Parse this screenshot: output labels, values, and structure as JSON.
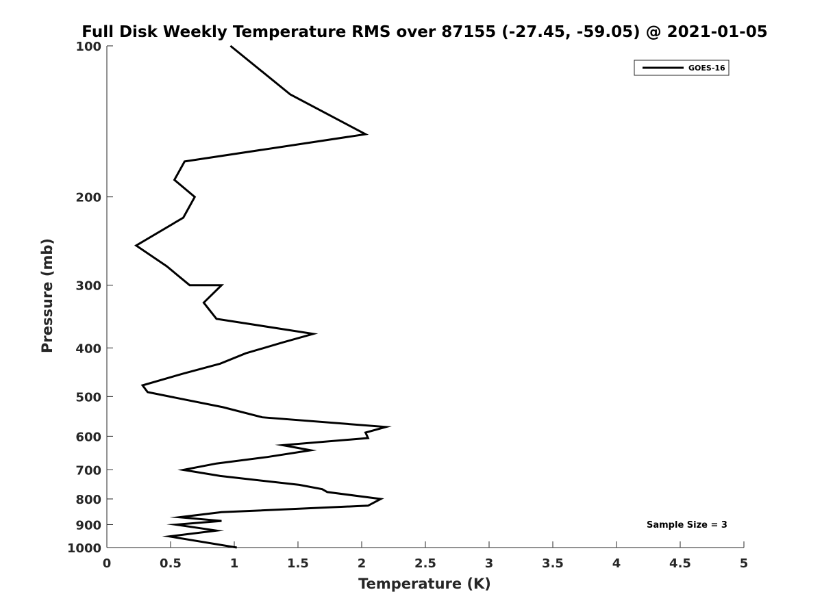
{
  "chart_data": {
    "type": "line",
    "title": "Full Disk Weekly Temperature RMS over 87155 (-27.45, -59.05) @ 2021-01-05",
    "xlabel": "Temperature (K)",
    "ylabel": "Pressure (mb)",
    "xlim": [
      0,
      5
    ],
    "ylim": [
      100,
      1000
    ],
    "y_scale": "log",
    "y_direction": "reversed",
    "x_ticks": [
      0,
      0.5,
      1,
      1.5,
      2,
      2.5,
      3,
      3.5,
      4,
      4.5,
      5
    ],
    "x_tick_labels": [
      "0",
      "0.5",
      "1",
      "1.5",
      "2",
      "2.5",
      "3",
      "3.5",
      "4",
      "4.5",
      "5"
    ],
    "y_ticks": [
      100,
      200,
      300,
      400,
      500,
      600,
      700,
      800,
      900,
      1000
    ],
    "y_tick_labels": [
      "100",
      "200",
      "300",
      "400",
      "500",
      "600",
      "700",
      "800",
      "900",
      "1000"
    ],
    "legend": {
      "position": "top-right",
      "entries": [
        "GOES-16"
      ]
    },
    "annotation": "Sample Size = 3",
    "series": [
      {
        "name": "GOES-16",
        "color": "#000000",
        "points": [
          [
            0.97,
            100
          ],
          [
            1.44,
            125
          ],
          [
            2.03,
            150
          ],
          [
            0.61,
            170
          ],
          [
            0.53,
            185
          ],
          [
            0.69,
            200
          ],
          [
            0.6,
            220
          ],
          [
            0.23,
            250
          ],
          [
            0.47,
            275
          ],
          [
            0.65,
            300
          ],
          [
            0.9,
            300
          ],
          [
            0.76,
            325
          ],
          [
            0.86,
            350
          ],
          [
            1.62,
            375
          ],
          [
            1.38,
            390
          ],
          [
            1.09,
            410
          ],
          [
            0.89,
            430
          ],
          [
            0.6,
            450
          ],
          [
            0.28,
            475
          ],
          [
            0.32,
            490
          ],
          [
            0.91,
            525
          ],
          [
            1.22,
            550
          ],
          [
            2.19,
            575
          ],
          [
            2.03,
            590
          ],
          [
            2.05,
            605
          ],
          [
            1.38,
            625
          ],
          [
            1.6,
            640
          ],
          [
            1.26,
            660
          ],
          [
            0.86,
            680
          ],
          [
            0.6,
            700
          ],
          [
            0.89,
            720
          ],
          [
            1.51,
            750
          ],
          [
            1.69,
            765
          ],
          [
            1.73,
            775
          ],
          [
            2.15,
            800
          ],
          [
            2.05,
            825
          ],
          [
            0.9,
            850
          ],
          [
            0.57,
            870
          ],
          [
            0.9,
            885
          ],
          [
            0.54,
            900
          ],
          [
            0.86,
            925
          ],
          [
            0.49,
            950
          ],
          [
            1.02,
            1000
          ]
        ]
      }
    ]
  }
}
